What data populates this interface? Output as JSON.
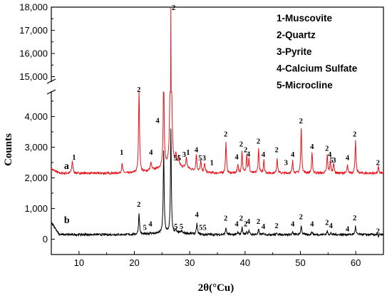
{
  "chart_data": {
    "type": "line",
    "title": "",
    "xlabel": "2θ(°Cu)",
    "ylabel": "Counts",
    "xlim": [
      5,
      65
    ],
    "x_ticks": [
      10,
      20,
      30,
      40,
      50,
      60
    ],
    "y_axis_break": {
      "lower_range": [
        -500,
        4800
      ],
      "upper_range": [
        14800,
        18000
      ]
    },
    "y_ticks_lower": [
      0,
      1000,
      2000,
      3000,
      4000
    ],
    "y_ticks_upper": [
      15000,
      16000,
      17000,
      18000
    ],
    "y_tick_labels": {
      "0": "0",
      "1000": "1,000",
      "2000": "2,000",
      "3000": "3,000",
      "4000": "4,000",
      "15000": "15,000",
      "16000": "16,000",
      "17000": "17,000",
      "18000": "18,000"
    },
    "legend": {
      "placement": "top-right",
      "entries": [
        "1-Muscovite",
        "2-Quartz",
        "3-Pyrite",
        "4-Calcium Sulfate",
        "5-Microcline"
      ]
    },
    "series": [
      {
        "name": "a",
        "color": "#e8141c",
        "baseline": 2150,
        "peaks": [
          [
            8.8,
            2550,
            0.12
          ],
          [
            17.8,
            2450,
            0.12
          ],
          [
            20.85,
            4900,
            0.1
          ],
          [
            23.0,
            2400,
            0.14
          ],
          [
            25.3,
            5100,
            0.1
          ],
          [
            26.6,
            18000,
            0.08
          ],
          [
            27.5,
            2500,
            0.1
          ],
          [
            28.0,
            2450,
            0.1
          ],
          [
            29.4,
            2500,
            0.12
          ],
          [
            31.2,
            2700,
            0.1
          ],
          [
            32.0,
            2500,
            0.1
          ],
          [
            32.7,
            2450,
            0.1
          ],
          [
            36.55,
            3150,
            0.1
          ],
          [
            38.7,
            2450,
            0.1
          ],
          [
            39.45,
            2850,
            0.1
          ],
          [
            40.3,
            2750,
            0.1
          ],
          [
            40.7,
            2600,
            0.1
          ],
          [
            42.45,
            2950,
            0.1
          ],
          [
            43.4,
            2600,
            0.1
          ],
          [
            45.8,
            2650,
            0.1
          ],
          [
            48.6,
            2550,
            0.1
          ],
          [
            50.15,
            3650,
            0.1
          ],
          [
            52.1,
            2800,
            0.1
          ],
          [
            54.85,
            2750,
            0.1
          ],
          [
            55.4,
            2550,
            0.1
          ],
          [
            56.0,
            2500,
            0.1
          ],
          [
            58.5,
            2400,
            0.1
          ],
          [
            59.95,
            3200,
            0.1
          ],
          [
            64.1,
            2350,
            0.1
          ]
        ]
      },
      {
        "name": "b",
        "color": "#000000",
        "baseline": 150,
        "peaks": [
          [
            20.85,
            850,
            0.1
          ],
          [
            21.9,
            150,
            0.12
          ],
          [
            22.9,
            200,
            0.12
          ],
          [
            25.3,
            2800,
            0.1
          ],
          [
            26.6,
            3500,
            0.09
          ],
          [
            27.5,
            220,
            0.1
          ],
          [
            28.5,
            220,
            0.1
          ],
          [
            31.3,
            500,
            0.1
          ],
          [
            32.0,
            150,
            0.1
          ],
          [
            32.7,
            120,
            0.1
          ],
          [
            36.55,
            380,
            0.1
          ],
          [
            38.7,
            220,
            0.1
          ],
          [
            39.45,
            400,
            0.1
          ],
          [
            40.3,
            250,
            0.1
          ],
          [
            40.7,
            280,
            0.1
          ],
          [
            42.45,
            320,
            0.1
          ],
          [
            43.4,
            180,
            0.1
          ],
          [
            45.8,
            200,
            0.1
          ],
          [
            48.6,
            220,
            0.1
          ],
          [
            50.15,
            450,
            0.1
          ],
          [
            52.1,
            250,
            0.1
          ],
          [
            54.85,
            260,
            0.1
          ],
          [
            55.5,
            200,
            0.1
          ],
          [
            58.5,
            150,
            0.1
          ],
          [
            59.95,
            420,
            0.1
          ],
          [
            64.1,
            100,
            0.1
          ]
        ]
      }
    ],
    "peak_labels": [
      {
        "series": "a",
        "text": "1",
        "x": 9.1,
        "y": 2590
      },
      {
        "series": "a",
        "text": "1",
        "x": 17.7,
        "y": 2760
      },
      {
        "series": "a",
        "text": "2",
        "x": 20.8,
        "y": 5020
      },
      {
        "series": "a",
        "text": "4",
        "x": 23.0,
        "y": 2760
      },
      {
        "series": "a",
        "text": "4",
        "x": 24.2,
        "y": 3790
      },
      {
        "series": "a",
        "text": "2",
        "x": 27.1,
        "y": 17880
      },
      {
        "series": "a",
        "text": "5",
        "x": 27.4,
        "y": 2570
      },
      {
        "series": "a",
        "text": "5",
        "x": 28.1,
        "y": 2570
      },
      {
        "series": "a",
        "text": "3",
        "x": 29.0,
        "y": 2680
      },
      {
        "series": "a",
        "text": "1",
        "x": 29.7,
        "y": 2760
      },
      {
        "series": "a",
        "text": "4",
        "x": 31.2,
        "y": 2840
      },
      {
        "series": "a",
        "text": "5",
        "x": 31.9,
        "y": 2570
      },
      {
        "series": "a",
        "text": "3",
        "x": 32.6,
        "y": 2570
      },
      {
        "series": "a",
        "text": "1",
        "x": 34.0,
        "y": 2420
      },
      {
        "series": "a",
        "text": "2",
        "x": 36.5,
        "y": 3350
      },
      {
        "series": "a",
        "text": "4",
        "x": 38.5,
        "y": 2600
      },
      {
        "series": "a",
        "text": "2",
        "x": 39.3,
        "y": 3020
      },
      {
        "series": "a",
        "text": "2",
        "x": 40.1,
        "y": 2840
      },
      {
        "series": "a",
        "text": "4",
        "x": 40.6,
        "y": 2700
      },
      {
        "series": "a",
        "text": "2",
        "x": 42.4,
        "y": 3120
      },
      {
        "series": "a",
        "text": "4",
        "x": 43.3,
        "y": 2680
      },
      {
        "series": "a",
        "text": "2",
        "x": 45.7,
        "y": 2840
      },
      {
        "series": "a",
        "text": "3",
        "x": 47.4,
        "y": 2420
      },
      {
        "series": "a",
        "text": "4",
        "x": 48.6,
        "y": 2680
      },
      {
        "series": "a",
        "text": "2",
        "x": 50.1,
        "y": 3780
      },
      {
        "series": "a",
        "text": "4",
        "x": 52.1,
        "y": 2940
      },
      {
        "series": "a",
        "text": "2",
        "x": 54.8,
        "y": 2880
      },
      {
        "series": "a",
        "text": "4",
        "x": 55.3,
        "y": 2680
      },
      {
        "series": "a",
        "text": "5",
        "x": 55.6,
        "y": 2500
      },
      {
        "series": "a",
        "text": "3",
        "x": 56.1,
        "y": 2500
      },
      {
        "series": "a",
        "text": "4",
        "x": 58.5,
        "y": 2580
      },
      {
        "series": "a",
        "text": "2",
        "x": 59.8,
        "y": 3350
      },
      {
        "series": "a",
        "text": "2",
        "x": 64.0,
        "y": 2420
      },
      {
        "series": "b",
        "text": "2",
        "x": 20.8,
        "y": 1060
      },
      {
        "series": "b",
        "text": "5",
        "x": 21.9,
        "y": 300
      },
      {
        "series": "b",
        "text": "4",
        "x": 22.9,
        "y": 420
      },
      {
        "series": "b",
        "text": "5",
        "x": 27.5,
        "y": 340
      },
      {
        "series": "b",
        "text": "5",
        "x": 28.5,
        "y": 340
      },
      {
        "series": "b",
        "text": "4",
        "x": 31.3,
        "y": 720
      },
      {
        "series": "b",
        "text": "5",
        "x": 32.0,
        "y": 300
      },
      {
        "series": "b",
        "text": "5",
        "x": 32.7,
        "y": 300
      },
      {
        "series": "b",
        "text": "2",
        "x": 36.5,
        "y": 600
      },
      {
        "series": "b",
        "text": "4",
        "x": 38.5,
        "y": 420
      },
      {
        "series": "b",
        "text": "2",
        "x": 39.3,
        "y": 600
      },
      {
        "series": "b",
        "text": "2",
        "x": 40.1,
        "y": 420
      },
      {
        "series": "b",
        "text": "4",
        "x": 40.6,
        "y": 500
      },
      {
        "series": "b",
        "text": "2",
        "x": 42.4,
        "y": 500
      },
      {
        "series": "b",
        "text": "4",
        "x": 43.3,
        "y": 340
      },
      {
        "series": "b",
        "text": "2",
        "x": 45.7,
        "y": 360
      },
      {
        "series": "b",
        "text": "4",
        "x": 48.6,
        "y": 420
      },
      {
        "series": "b",
        "text": "2",
        "x": 50.1,
        "y": 650
      },
      {
        "series": "b",
        "text": "4",
        "x": 52.1,
        "y": 420
      },
      {
        "series": "b",
        "text": "2",
        "x": 54.8,
        "y": 460
      },
      {
        "series": "b",
        "text": "4",
        "x": 55.5,
        "y": 360
      },
      {
        "series": "b",
        "text": "4",
        "x": 58.5,
        "y": 260
      },
      {
        "series": "b",
        "text": "2",
        "x": 59.8,
        "y": 620
      },
      {
        "series": "b",
        "text": "2",
        "x": 64.0,
        "y": 180
      }
    ]
  }
}
